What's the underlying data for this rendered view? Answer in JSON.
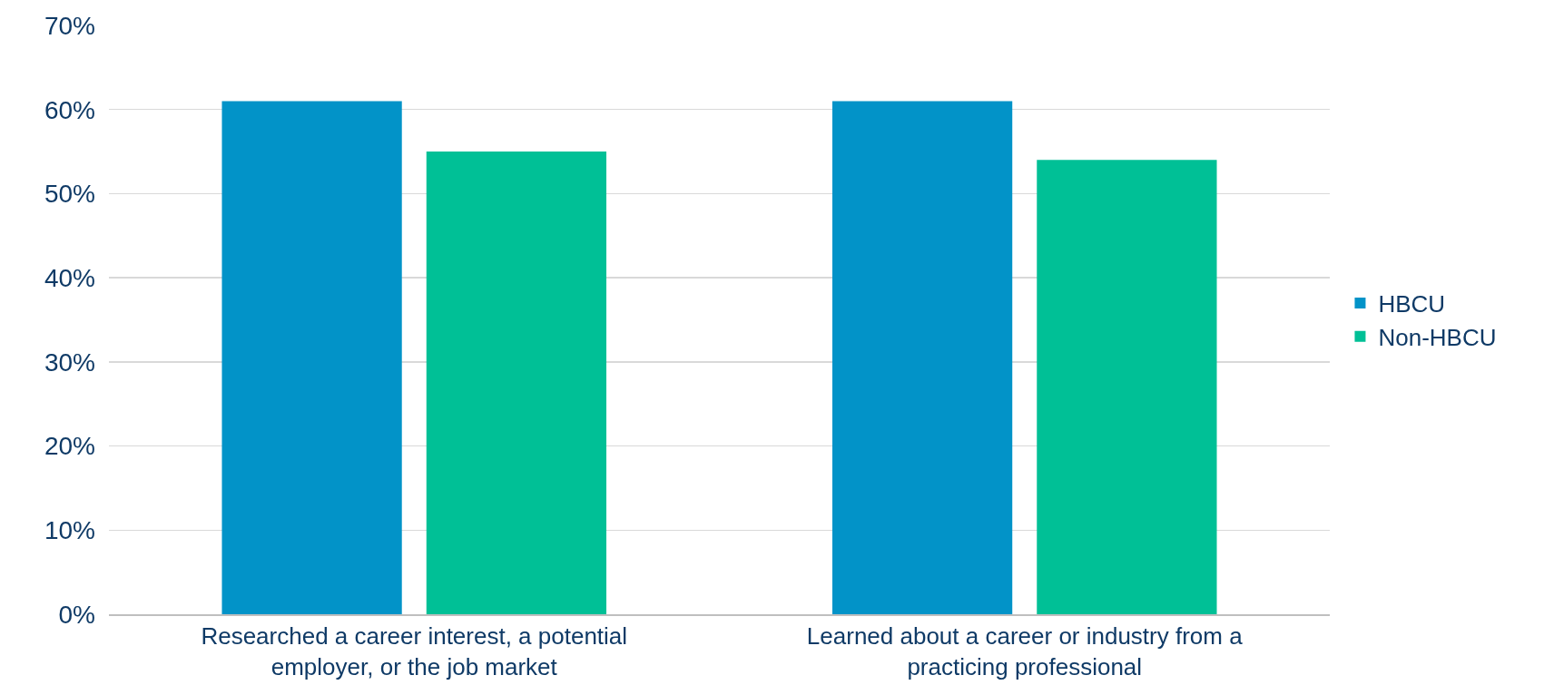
{
  "chart_data": {
    "type": "bar",
    "categories": [
      "Researched a career interest, a potential employer, or the job market",
      "Learned about a career or industry from a practicing professional"
    ],
    "series": [
      {
        "name": "HBCU",
        "color": "#0293c8",
        "values": [
          61,
          61
        ]
      },
      {
        "name": "Non-HBCU",
        "color": "#00c096",
        "values": [
          55,
          54
        ]
      }
    ],
    "ylim": [
      0,
      70
    ],
    "yticks": [
      {
        "value": 0,
        "label": "0%"
      },
      {
        "value": 10,
        "label": "10%"
      },
      {
        "value": 20,
        "label": "20%"
      },
      {
        "value": 30,
        "label": "30%"
      },
      {
        "value": 40,
        "label": "40%"
      },
      {
        "value": 50,
        "label": "50%"
      },
      {
        "value": 60,
        "label": "60%"
      },
      {
        "value": 70,
        "label": "70%"
      }
    ],
    "grid": "y",
    "legend": "right"
  }
}
